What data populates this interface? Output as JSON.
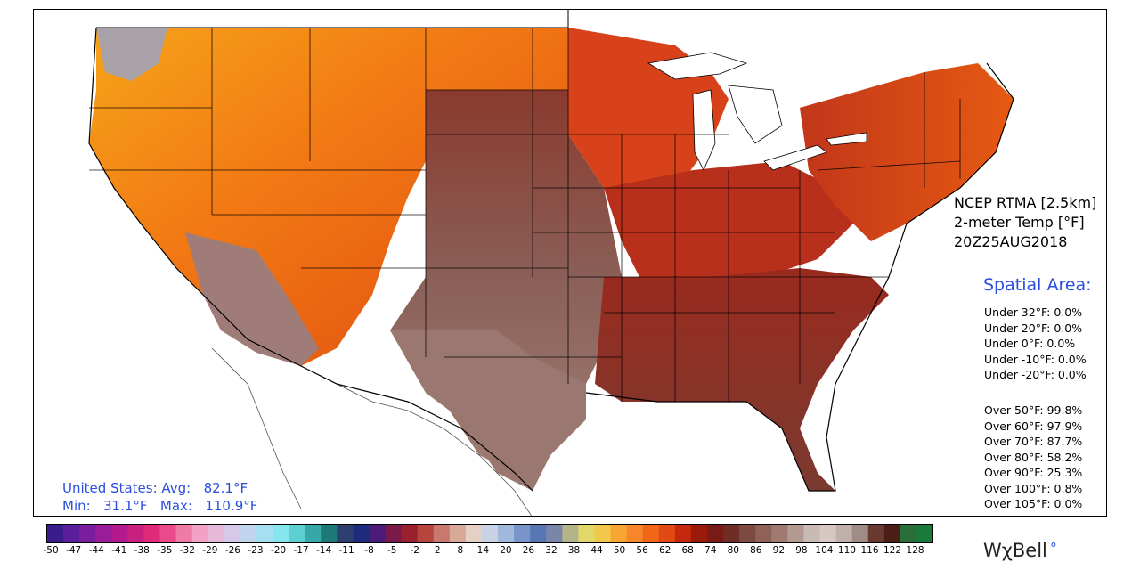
{
  "header": {
    "product": "NCEP RTMA [2.5km]",
    "variable": "2-meter Temp [°F]",
    "valid_time": "20Z25AUG2018"
  },
  "spatial": {
    "title": "Spatial Area:",
    "under": [
      "Under 32°F: 0.0%",
      "Under 20°F: 0.0%",
      "Under 0°F: 0.0%",
      "Under -10°F: 0.0%",
      "Under -20°F: 0.0%"
    ],
    "over": [
      "Over 50°F: 99.8%",
      "Over 60°F: 97.9%",
      "Over 70°F: 87.7%",
      "Over 80°F: 58.2%",
      "Over 90°F: 25.3%",
      "Over 100°F: 0.8%",
      "Over 105°F: 0.0%"
    ]
  },
  "summary": {
    "avg_label": "United States: Avg:",
    "avg_value": "82.1°F",
    "min_label": "Min:",
    "min_value": "31.1°F",
    "max_label": "Max:",
    "max_value": "110.9°F"
  },
  "colorbar": {
    "ticks": [
      "-50",
      "-47",
      "-44",
      "-41",
      "-38",
      "-35",
      "-32",
      "-29",
      "-26",
      "-23",
      "-20",
      "-17",
      "-14",
      "-11",
      "-8",
      "-5",
      "-2",
      "2",
      "8",
      "14",
      "20",
      "26",
      "32",
      "38",
      "44",
      "50",
      "56",
      "62",
      "68",
      "74",
      "80",
      "86",
      "92",
      "98",
      "104",
      "110",
      "116",
      "122",
      "128"
    ],
    "colors": [
      "#3a1c8c",
      "#5a1e9c",
      "#7a1e9e",
      "#9a1c98",
      "#b21a8e",
      "#c8207e",
      "#de2a78",
      "#ea4a8a",
      "#f07aa6",
      "#f2a2c4",
      "#e8b8d8",
      "#d6c8e8",
      "#c0d4ee",
      "#a6e0f0",
      "#86e6ee",
      "#5ccfd0",
      "#36a8a8",
      "#1d7878",
      "#2e3e6e",
      "#1e2a7c",
      "#4a1b78",
      "#7a1a4a",
      "#9a2030",
      "#b8443e",
      "#c8786e",
      "#d8a898",
      "#e4d0c4",
      "#c8d2e4",
      "#a0b8dc",
      "#7894c8",
      "#5876b4",
      "#7a86a8",
      "#b4b48a",
      "#e2d86a",
      "#f2c84c",
      "#f8a632",
      "#f8862a",
      "#f26618",
      "#e24a14",
      "#c4280e",
      "#9a1a0c",
      "#7a1a14",
      "#6e2e26",
      "#7c4a40",
      "#8e6258",
      "#a07a70",
      "#b29a92",
      "#c8bab4",
      "#d8c8c4",
      "#c0b0ac",
      "#a08c86",
      "#6a3a30",
      "#4a1e16",
      "#2a6e3a",
      "#1a7a3a"
    ]
  },
  "brand": {
    "name": "WχBell",
    "mark": "°"
  }
}
